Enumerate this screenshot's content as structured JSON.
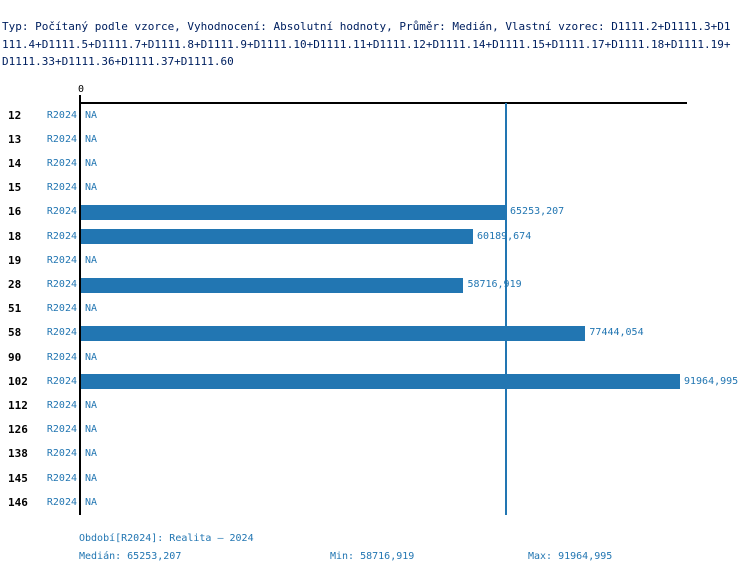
{
  "header": {
    "lines": [
      "Typ: Počítaný podle vzorce, Vyhodnocení: Absolutní hodnoty, Průměr: Medián, Vlastní vzorec: D1111.2+D1111.3+D1",
      "111.4+D1111.5+D1111.7+D1111.8+D1111.9+D1111.10+D1111.11+D1111.12+D1111.14+D1111.15+D1111.17+D1111.18+D1111.19+",
      "D1111.33+D1111.36+D1111.37+D1111.60"
    ]
  },
  "chart_data": {
    "type": "bar",
    "orientation": "horizontal",
    "value_axis": {
      "zero_label": "0",
      "min": 0,
      "max": 91964.995
    },
    "median": 65253.207,
    "period_label": "R2024",
    "na_label": "NA",
    "categories": [
      "12",
      "13",
      "14",
      "15",
      "16",
      "18",
      "19",
      "28",
      "51",
      "58",
      "90",
      "102",
      "112",
      "126",
      "138",
      "145",
      "146"
    ],
    "rows": [
      {
        "category": "12",
        "period": "R2024",
        "value": null,
        "label": "NA"
      },
      {
        "category": "13",
        "period": "R2024",
        "value": null,
        "label": "NA"
      },
      {
        "category": "14",
        "period": "R2024",
        "value": null,
        "label": "NA"
      },
      {
        "category": "15",
        "period": "R2024",
        "value": null,
        "label": "NA"
      },
      {
        "category": "16",
        "period": "R2024",
        "value": 65253.207,
        "label": "65253,207"
      },
      {
        "category": "18",
        "period": "R2024",
        "value": 60189.674,
        "label": "60189,674"
      },
      {
        "category": "19",
        "period": "R2024",
        "value": null,
        "label": "NA"
      },
      {
        "category": "28",
        "period": "R2024",
        "value": 58716.919,
        "label": "58716,919"
      },
      {
        "category": "51",
        "period": "R2024",
        "value": null,
        "label": "NA"
      },
      {
        "category": "58",
        "period": "R2024",
        "value": 77444.054,
        "label": "77444,054"
      },
      {
        "category": "90",
        "period": "R2024",
        "value": null,
        "label": "NA"
      },
      {
        "category": "102",
        "period": "R2024",
        "value": 91964.995,
        "label": "91964,995"
      },
      {
        "category": "112",
        "period": "R2024",
        "value": null,
        "label": "NA"
      },
      {
        "category": "126",
        "period": "R2024",
        "value": null,
        "label": "NA"
      },
      {
        "category": "138",
        "period": "R2024",
        "value": null,
        "label": "NA"
      },
      {
        "category": "145",
        "period": "R2024",
        "value": null,
        "label": "NA"
      },
      {
        "category": "146",
        "period": "R2024",
        "value": null,
        "label": "NA"
      }
    ]
  },
  "footer": {
    "period_info": "Období[R2024]: Realita – 2024",
    "median": {
      "label": "Medián:",
      "value": "65253,207"
    },
    "min": {
      "label": "Min:",
      "value": "58716,919"
    },
    "max": {
      "label": "Max:",
      "value": "91964,995"
    }
  },
  "colors": {
    "bar": "#2276b2",
    "blue_text": "#2276b2",
    "header_text": "#002060",
    "axis": "#000000"
  }
}
